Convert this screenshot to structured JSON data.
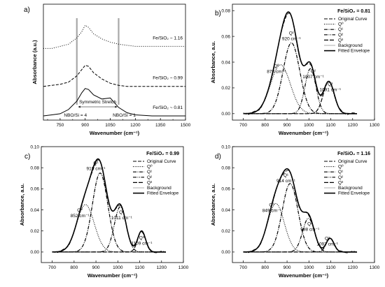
{
  "chart_data": [
    {
      "panel": "a)",
      "type": "line",
      "xlabel": "Wavenumber (cm⁻¹)",
      "ylabel": "Absorbance (a.u.)",
      "xlim": [
        650,
        1500
      ],
      "xticks": [
        "750",
        "900",
        "1050",
        "1200",
        "1350",
        "1500"
      ],
      "series": [
        {
          "name": "Fe/SiO₂ ~ 1.16",
          "style": "dotted",
          "x": [
            650,
            700,
            750,
            800,
            850,
            880,
            900,
            920,
            950,
            1000,
            1050,
            1100,
            1150,
            1200,
            1300,
            1400,
            1500
          ],
          "y": [
            3.4,
            3.4,
            3.5,
            3.6,
            3.9,
            4.2,
            4.5,
            4.4,
            4.1,
            3.85,
            3.7,
            3.6,
            3.55,
            3.5,
            3.5,
            3.5,
            3.5
          ]
        },
        {
          "name": "Fe/SiO₂ ~ 0.99",
          "style": "dashed",
          "x": [
            650,
            700,
            750,
            800,
            850,
            880,
            900,
            920,
            950,
            1000,
            1050,
            1100,
            1150,
            1200,
            1300,
            1400,
            1500
          ],
          "y": [
            1.6,
            1.65,
            1.7,
            1.8,
            2.1,
            2.4,
            2.6,
            2.55,
            2.25,
            1.95,
            1.75,
            1.65,
            1.6,
            1.6,
            1.6,
            1.6,
            1.6
          ]
        },
        {
          "name": "Fe/SiO₂ ~ 0.81",
          "style": "solid",
          "x": [
            650,
            700,
            750,
            800,
            850,
            880,
            900,
            920,
            950,
            1000,
            1050,
            1100,
            1150,
            1200,
            1300,
            1400,
            1500
          ],
          "y": [
            0.2,
            0.25,
            0.3,
            0.5,
            0.9,
            1.3,
            1.5,
            1.45,
            1.2,
            1.0,
            1.05,
            0.6,
            0.35,
            0.25,
            0.2,
            0.2,
            0.2
          ]
        }
      ],
      "annotations": [
        "NBO/Si = 4",
        "Symmetric Stretch",
        "NBO/Si = 1"
      ],
      "vlines": [
        850,
        1100
      ]
    },
    {
      "panel": "b)",
      "type": "line",
      "title": "Fe/SiO₂ = 0.81",
      "xlabel": "Wavenumber (cm⁻¹)",
      "ylabel": "Absorbance, a.u.",
      "xlim": [
        650,
        1300
      ],
      "ylim": [
        -0.005,
        0.085
      ],
      "xticks": [
        "700",
        "800",
        "900",
        "1000",
        "1100",
        "1200",
        "1300"
      ],
      "yticks": [
        "0.00",
        "0.02",
        "0.04",
        "0.06",
        "0.08"
      ],
      "legend": [
        "Original Curve",
        "Q⁰",
        "Q¹",
        "Q²",
        "Q³",
        "Background",
        "Fitted Envelope"
      ],
      "peaks": [
        {
          "label": "Q⁰",
          "center": 870,
          "height": 0.038,
          "width": 45,
          "annotation": "870 cm⁻¹"
        },
        {
          "label": "Q¹",
          "center": 920,
          "height": 0.055,
          "width": 38,
          "annotation": "920 cm⁻¹"
        },
        {
          "label": "Q²",
          "center": 1007,
          "height": 0.035,
          "width": 25,
          "annotation": "1007 cm⁻¹"
        },
        {
          "label": "Q³",
          "center": 1091,
          "height": 0.025,
          "width": 25,
          "annotation": "1091 cm⁻¹"
        }
      ]
    },
    {
      "panel": "c)",
      "type": "line",
      "title": "Fe/SiO₂ = 0.99",
      "xlabel": "Wavenumber (cm⁻¹)",
      "ylabel": "Absorbance, a.u.",
      "xlim": [
        650,
        1300
      ],
      "ylim": [
        -0.01,
        0.1
      ],
      "xticks": [
        "700",
        "800",
        "900",
        "1000",
        "1100",
        "1200",
        "1300"
      ],
      "yticks": [
        "0.00",
        "0.02",
        "0.04",
        "0.06",
        "0.08",
        "0.10"
      ],
      "legend": [
        "Original Curve",
        "Q⁰",
        "Q¹",
        "Q²",
        "Q³",
        "Background",
        "Fitted Envelope"
      ],
      "peaks": [
        {
          "label": "Q⁰",
          "center": 852,
          "height": 0.045,
          "width": 40,
          "annotation": "852 cm⁻¹"
        },
        {
          "label": "Q¹",
          "center": 919,
          "height": 0.075,
          "width": 35,
          "annotation": "919 cm⁻¹"
        },
        {
          "label": "Q²",
          "center": 1011,
          "height": 0.043,
          "width": 27,
          "annotation": "1011 cm⁻¹"
        },
        {
          "label": "Q³",
          "center": 1109,
          "height": 0.02,
          "width": 18,
          "annotation": "1109 cm⁻¹"
        }
      ]
    },
    {
      "panel": "d)",
      "type": "line",
      "title": "Fe/SiO₂ = 1.16",
      "xlabel": "Wavenumber (cm⁻¹)",
      "ylabel": "Absorbance, a.u.",
      "xlim": [
        650,
        1300
      ],
      "ylim": [
        -0.01,
        0.1
      ],
      "xticks": [
        "700",
        "800",
        "900",
        "1000",
        "1100",
        "1200",
        "1300"
      ],
      "yticks": [
        "0.00",
        "0.02",
        "0.04",
        "0.06",
        "0.08",
        "0.10"
      ],
      "legend": [
        "Original Curve",
        "Q⁰",
        "Q¹",
        "Q²",
        "Q³",
        "Background",
        "Fitted Envelope"
      ],
      "peaks": [
        {
          "label": "Q⁰",
          "center": 849,
          "height": 0.046,
          "width": 38,
          "annotation": "849 cm⁻¹"
        },
        {
          "label": "Q¹",
          "center": 914,
          "height": 0.065,
          "width": 36,
          "annotation": "914 cm⁻¹"
        },
        {
          "label": "Q²",
          "center": 998,
          "height": 0.032,
          "width": 27,
          "annotation": "998 cm⁻¹"
        },
        {
          "label": "Q³",
          "center": 1097,
          "height": 0.013,
          "width": 18,
          "annotation": "1097 cm⁻¹"
        }
      ]
    }
  ]
}
